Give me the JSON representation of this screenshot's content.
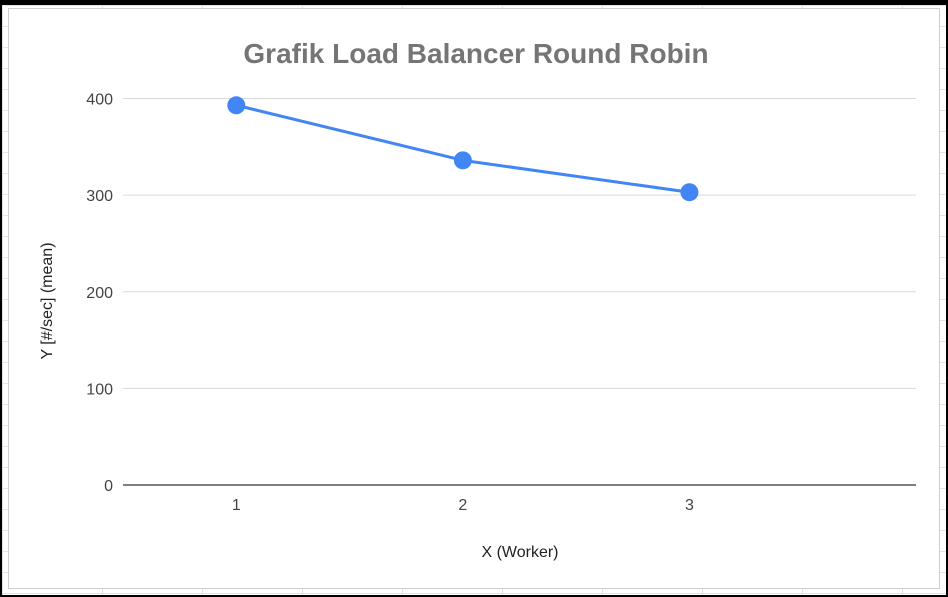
{
  "chart_data": {
    "type": "line",
    "title": "Grafik Load Balancer Round Robin",
    "xlabel": "X (Worker)",
    "ylabel": "Y [#/sec] (mean)",
    "categories": [
      "1",
      "2",
      "3"
    ],
    "series": [
      {
        "values": [
          393,
          336,
          303
        ],
        "color": "#4285f4"
      }
    ],
    "ylim": [
      0,
      400
    ],
    "yticks": [
      0,
      100,
      200,
      300,
      400
    ],
    "grid": true,
    "legend": "none"
  }
}
